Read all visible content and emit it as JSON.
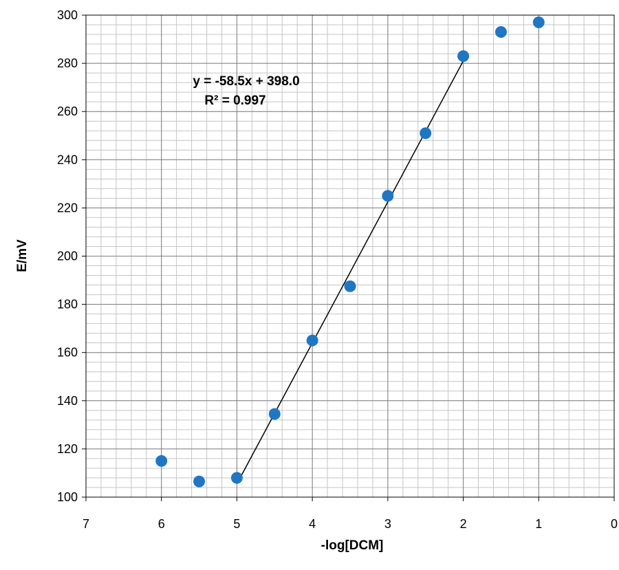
{
  "chart_data": {
    "type": "scatter",
    "xlabel": "-log[DCM]",
    "ylabel": "E/mV",
    "xlim": [
      7,
      0
    ],
    "x_reversed": true,
    "ylim": [
      100,
      300
    ],
    "x_ticks": [
      7,
      6,
      5,
      4,
      3,
      2,
      1,
      0
    ],
    "y_ticks": [
      100,
      120,
      140,
      160,
      180,
      200,
      220,
      240,
      260,
      280,
      300
    ],
    "x_tick_labels": [
      "7",
      "6",
      "5",
      "4",
      "3",
      "2",
      "1",
      "0"
    ],
    "y_tick_labels": [
      "100",
      "120",
      "140",
      "160",
      "180",
      "200",
      "220",
      "240",
      "260",
      "280",
      "300"
    ],
    "grid": true,
    "minor_grid": true,
    "point_color": "#1f77c4",
    "series": [
      {
        "x": [
          6,
          5.5,
          5,
          4.5,
          4,
          3.5,
          3,
          2.5,
          2,
          1.5,
          1
        ],
        "y": [
          115,
          106.5,
          108,
          134.5,
          165,
          187.5,
          225,
          251,
          283,
          293,
          297
        ]
      }
    ],
    "trendline": {
      "x_range": [
        5,
        2
      ],
      "slope": -58.5,
      "intercept": 398.0,
      "color": "#000000"
    },
    "annotations": [
      "y = -58.5x + 398.0",
      "R² = 0.997"
    ]
  }
}
